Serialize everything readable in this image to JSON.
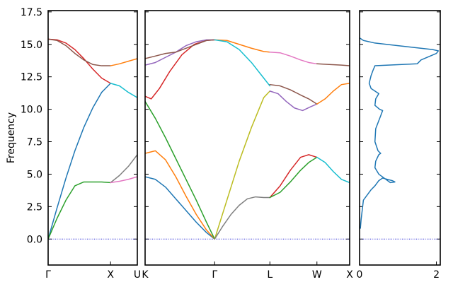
{
  "chart_data": {
    "type": "line",
    "ylabel": "Frequency",
    "ylim": [
      -2.0,
      17.6
    ],
    "yticks": [
      "0.0",
      "2.5",
      "5.0",
      "7.5",
      "10.0",
      "12.5",
      "15.0",
      "17.5"
    ],
    "zero_line_color": "#2a2ad6",
    "panels": [
      {
        "xlim": [
          0,
          1
        ],
        "ticks": [
          {
            "x": 0,
            "label": "Γ"
          },
          {
            "x": 0.7,
            "label": "X"
          },
          {
            "x": 1,
            "label": "U"
          }
        ],
        "series": [
          {
            "color": "#1f77b4",
            "x": [
              0,
              0.1,
              0.2,
              0.3,
              0.4,
              0.5,
              0.6,
              0.7
            ],
            "y": [
              0,
              2.4,
              4.7,
              6.8,
              8.6,
              10.1,
              11.3,
              12.0
            ]
          },
          {
            "color": "#2ca02c",
            "x": [
              0,
              0.1,
              0.2,
              0.3,
              0.4,
              0.5,
              0.6,
              0.7
            ],
            "y": [
              0,
              1.6,
              3.0,
              4.1,
              4.4,
              4.4,
              4.4,
              4.35
            ]
          },
          {
            "color": "#d62728",
            "x": [
              0,
              0.1,
              0.2,
              0.3,
              0.4,
              0.5,
              0.6,
              0.7
            ],
            "y": [
              15.4,
              15.35,
              15.1,
              14.6,
              13.9,
              13.1,
              12.4,
              12.0
            ]
          },
          {
            "color": "#8c564b",
            "x": [
              0,
              0.1,
              0.2,
              0.3,
              0.4,
              0.5,
              0.6,
              0.7
            ],
            "y": [
              15.4,
              15.3,
              14.9,
              14.3,
              13.8,
              13.45,
              13.35,
              13.35
            ]
          },
          {
            "color": "#ff7f0e",
            "x": [
              0.7,
              0.8,
              0.9,
              1.0
            ],
            "y": [
              13.35,
              13.5,
              13.7,
              13.9
            ]
          },
          {
            "color": "#17becf",
            "x": [
              0.7,
              0.8,
              0.9,
              1.0
            ],
            "y": [
              12.0,
              11.8,
              11.3,
              10.9
            ]
          },
          {
            "color": "#7f7f7f",
            "x": [
              0.7,
              0.8,
              0.9,
              1.0
            ],
            "y": [
              4.35,
              4.9,
              5.6,
              6.5
            ]
          },
          {
            "color": "#e377c2",
            "x": [
              0.7,
              0.8,
              0.9,
              1.0
            ],
            "y": [
              4.35,
              4.45,
              4.6,
              4.8
            ]
          }
        ]
      },
      {
        "xlim": [
          0,
          1
        ],
        "ticks": [
          {
            "x": 0,
            "label": "K"
          },
          {
            "x": 0.34,
            "label": "Γ"
          },
          {
            "x": 0.61,
            "label": "L"
          },
          {
            "x": 0.84,
            "label": "W"
          },
          {
            "x": 1,
            "label": "X"
          }
        ],
        "series": [
          {
            "color": "#1f77b4",
            "x": [
              0,
              0.05,
              0.1,
              0.15,
              0.2,
              0.25,
              0.3,
              0.34
            ],
            "y": [
              4.8,
              4.6,
              4.0,
              3.1,
              2.2,
              1.3,
              0.5,
              0
            ]
          },
          {
            "color": "#ff7f0e",
            "x": [
              0,
              0.05,
              0.1,
              0.15,
              0.2,
              0.25,
              0.3,
              0.34
            ],
            "y": [
              6.6,
              6.8,
              6.1,
              4.8,
              3.3,
              1.9,
              0.7,
              0
            ]
          },
          {
            "color": "#2ca02c",
            "x": [
              0,
              0.05,
              0.1,
              0.15,
              0.2,
              0.25,
              0.3,
              0.34
            ],
            "y": [
              10.6,
              9.3,
              7.8,
              6.2,
              4.6,
              3.0,
              1.3,
              0
            ]
          },
          {
            "color": "#d62728",
            "x": [
              0,
              0.03,
              0.07,
              0.12,
              0.18,
              0.24,
              0.3,
              0.34
            ],
            "y": [
              11.0,
              10.8,
              11.6,
              12.9,
              14.2,
              15.0,
              15.3,
              15.35
            ]
          },
          {
            "color": "#9467bd",
            "x": [
              0,
              0.05,
              0.1,
              0.15,
              0.2,
              0.25,
              0.3,
              0.34
            ],
            "y": [
              13.4,
              13.6,
              14.0,
              14.4,
              14.9,
              15.2,
              15.35,
              15.35
            ]
          },
          {
            "color": "#8c564b",
            "x": [
              0,
              0.05,
              0.1,
              0.15,
              0.2,
              0.25,
              0.3,
              0.34
            ],
            "y": [
              13.9,
              14.1,
              14.3,
              14.4,
              14.7,
              15.0,
              15.3,
              15.35
            ]
          },
          {
            "color": "#ff7f0e",
            "x": [
              0.34,
              0.4,
              0.46,
              0.52,
              0.58,
              0.61
            ],
            "y": [
              15.35,
              15.3,
              15.0,
              14.7,
              14.45,
              14.4
            ]
          },
          {
            "color": "#17becf",
            "x": [
              0.34,
              0.4,
              0.46,
              0.52,
              0.58,
              0.61
            ],
            "y": [
              15.35,
              15.2,
              14.6,
              13.6,
              12.4,
              11.8
            ]
          },
          {
            "color": "#bcbd22",
            "x": [
              0.34,
              0.4,
              0.46,
              0.52,
              0.58,
              0.61
            ],
            "y": [
              0,
              3.0,
              6.0,
              8.6,
              10.9,
              11.4
            ]
          },
          {
            "color": "#7f7f7f",
            "x": [
              0.34,
              0.38,
              0.42,
              0.46,
              0.5,
              0.54,
              0.58,
              0.61
            ],
            "y": [
              0,
              1.0,
              1.9,
              2.6,
              3.1,
              3.25,
              3.2,
              3.2
            ]
          },
          {
            "color": "#d62728",
            "x": [
              0.61,
              0.66,
              0.71,
              0.76,
              0.8,
              0.84
            ],
            "y": [
              3.2,
              4.1,
              5.3,
              6.3,
              6.5,
              6.3
            ]
          },
          {
            "color": "#2ca02c",
            "x": [
              0.61,
              0.66,
              0.71,
              0.76,
              0.8,
              0.84
            ],
            "y": [
              3.2,
              3.6,
              4.4,
              5.3,
              5.9,
              6.3
            ]
          },
          {
            "color": "#9467bd",
            "x": [
              0.61,
              0.65,
              0.69,
              0.73,
              0.77,
              0.81,
              0.84
            ],
            "y": [
              11.4,
              11.2,
              10.6,
              10.1,
              9.9,
              10.2,
              10.4
            ]
          },
          {
            "color": "#8c564b",
            "x": [
              0.61,
              0.66,
              0.71,
              0.76,
              0.8,
              0.84
            ],
            "y": [
              11.9,
              11.8,
              11.5,
              11.1,
              10.8,
              10.4
            ]
          },
          {
            "color": "#e377c2",
            "x": [
              0.61,
              0.66,
              0.71,
              0.76,
              0.8,
              0.84
            ],
            "y": [
              14.4,
              14.35,
              14.1,
              13.8,
              13.6,
              13.5
            ]
          },
          {
            "color": "#17becf",
            "x": [
              0.84,
              0.88,
              0.92,
              0.96,
              1.0
            ],
            "y": [
              6.3,
              5.9,
              5.2,
              4.6,
              4.35
            ]
          },
          {
            "color": "#ff7f0e",
            "x": [
              0.84,
              0.88,
              0.92,
              0.96,
              1.0
            ],
            "y": [
              10.4,
              10.8,
              11.4,
              11.9,
              12.0
            ]
          },
          {
            "color": "#8c564b",
            "x": [
              0.84,
              0.9,
              0.96,
              1.0
            ],
            "y": [
              13.5,
              13.45,
              13.4,
              13.35
            ]
          }
        ]
      },
      {
        "xlim": [
          0,
          2.1
        ],
        "xticks": [
          "0",
          "2"
        ],
        "series": [
          {
            "color": "#1f77b4",
            "x": [
              0.02,
              0.04,
              0.06,
              0.08,
              0.1,
              0.2,
              0.3,
              0.4,
              0.45,
              0.5,
              0.6,
              0.85,
              0.92,
              0.8,
              0.5,
              0.4,
              0.42,
              0.5,
              0.55,
              0.48,
              0.4,
              0.42,
              0.55,
              0.6,
              0.52,
              0.4,
              0.42,
              0.5,
              0.3,
              0.25,
              0.3,
              0.35,
              0.4,
              1.5,
              1.6,
              2.0,
              2.05,
              1.9,
              1.0,
              0.4,
              0.1,
              0.0
            ],
            "y": [
              0.8,
              1.5,
              2.0,
              2.5,
              3.0,
              3.4,
              3.8,
              4.1,
              4.3,
              4.5,
              4.7,
              4.5,
              4.4,
              4.35,
              5.0,
              5.5,
              6.0,
              6.5,
              6.6,
              6.8,
              7.5,
              8.5,
              9.5,
              9.9,
              10.0,
              10.3,
              10.8,
              11.2,
              11.6,
              12.0,
              12.6,
              13.0,
              13.35,
              13.5,
              13.8,
              14.3,
              14.5,
              14.6,
              14.9,
              15.1,
              15.3,
              15.5
            ]
          }
        ]
      }
    ]
  }
}
